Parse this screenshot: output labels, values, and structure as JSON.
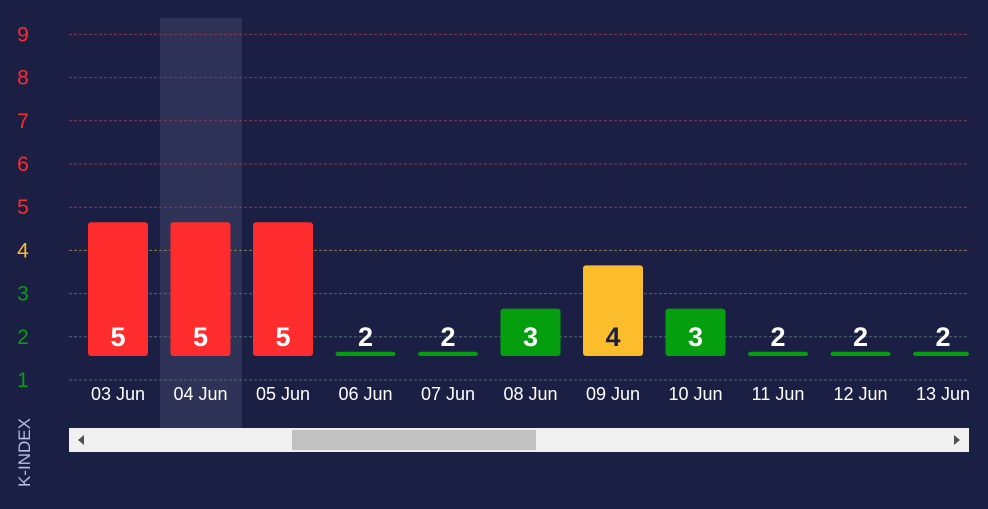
{
  "chart_data": {
    "type": "bar",
    "categories": [
      "03 Jun",
      "04 Jun",
      "05 Jun",
      "06 Jun",
      "07 Jun",
      "08 Jun",
      "09 Jun",
      "10 Jun",
      "11 Jun",
      "12 Jun",
      "13 Jun"
    ],
    "values": [
      5,
      5,
      5,
      2,
      2,
      3,
      4,
      3,
      2,
      2,
      2
    ],
    "ylabel": "K-INDEX",
    "yticks": [
      1,
      2,
      3,
      4,
      5,
      6,
      7,
      8,
      9
    ],
    "ylim": [
      1,
      9
    ],
    "highlighted_category": "04 Jun",
    "grid": true,
    "colors": {
      "low": "#049e0f",
      "moderate": "#fbbd2b",
      "high": "#fe2c2d",
      "background": "#1c1f44",
      "highlight": "#2f3257"
    }
  }
}
